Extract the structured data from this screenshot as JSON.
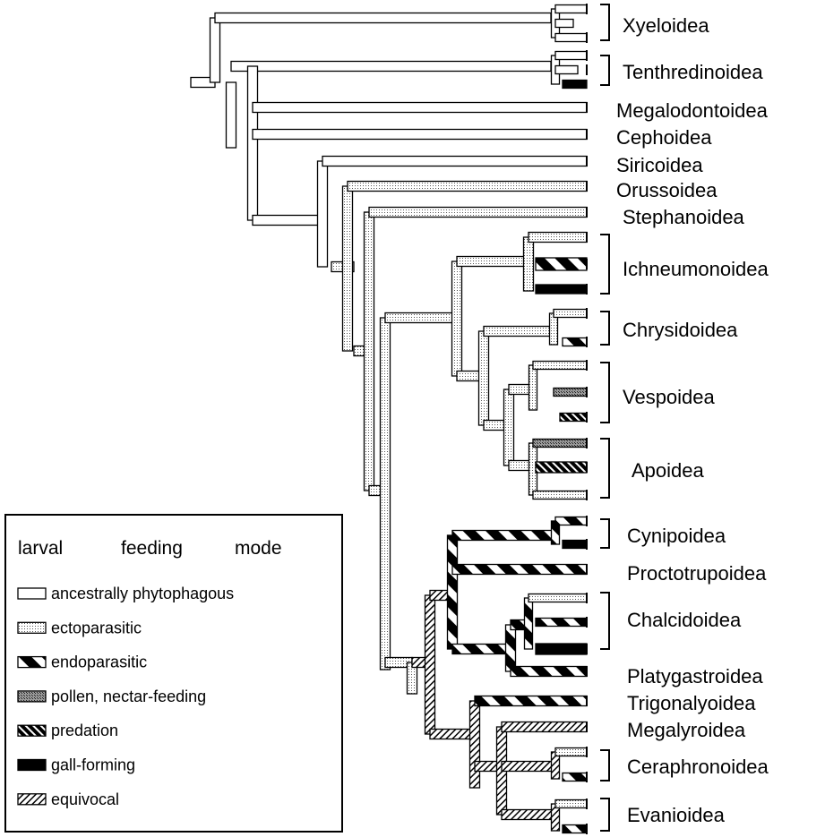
{
  "taxa": [
    "Xyeloidea",
    "Tenthredinoidea",
    "Megalodontoidea",
    "Cephoidea",
    "Siricoidea",
    "Orussoidea",
    "Stephanoidea",
    "Ichneumonoidea",
    "Chrysidoidea",
    "Vespoidea",
    "Apoidea",
    "Cynipoidea",
    "Proctotrupoidea",
    "Chalcidoidea",
    "Platygastroidea",
    "Trigonalyoidea",
    "Megalyroidea",
    "Ceraphronoidea",
    "Evanioidea"
  ],
  "legend": {
    "title_words": [
      "larval",
      "feeding",
      "mode"
    ],
    "items": [
      {
        "pattern": "white",
        "label": "ancestrally phytophagous"
      },
      {
        "pattern": "dots",
        "label": "ectoparasitic"
      },
      {
        "pattern": "endo",
        "label": "endoparasitic"
      },
      {
        "pattern": "cross",
        "label": "pollen, nectar-feeding"
      },
      {
        "pattern": "pred",
        "label": "predation"
      },
      {
        "pattern": "black",
        "label": "gall-forming"
      },
      {
        "pattern": "equiv",
        "label": "equivocal"
      }
    ]
  }
}
